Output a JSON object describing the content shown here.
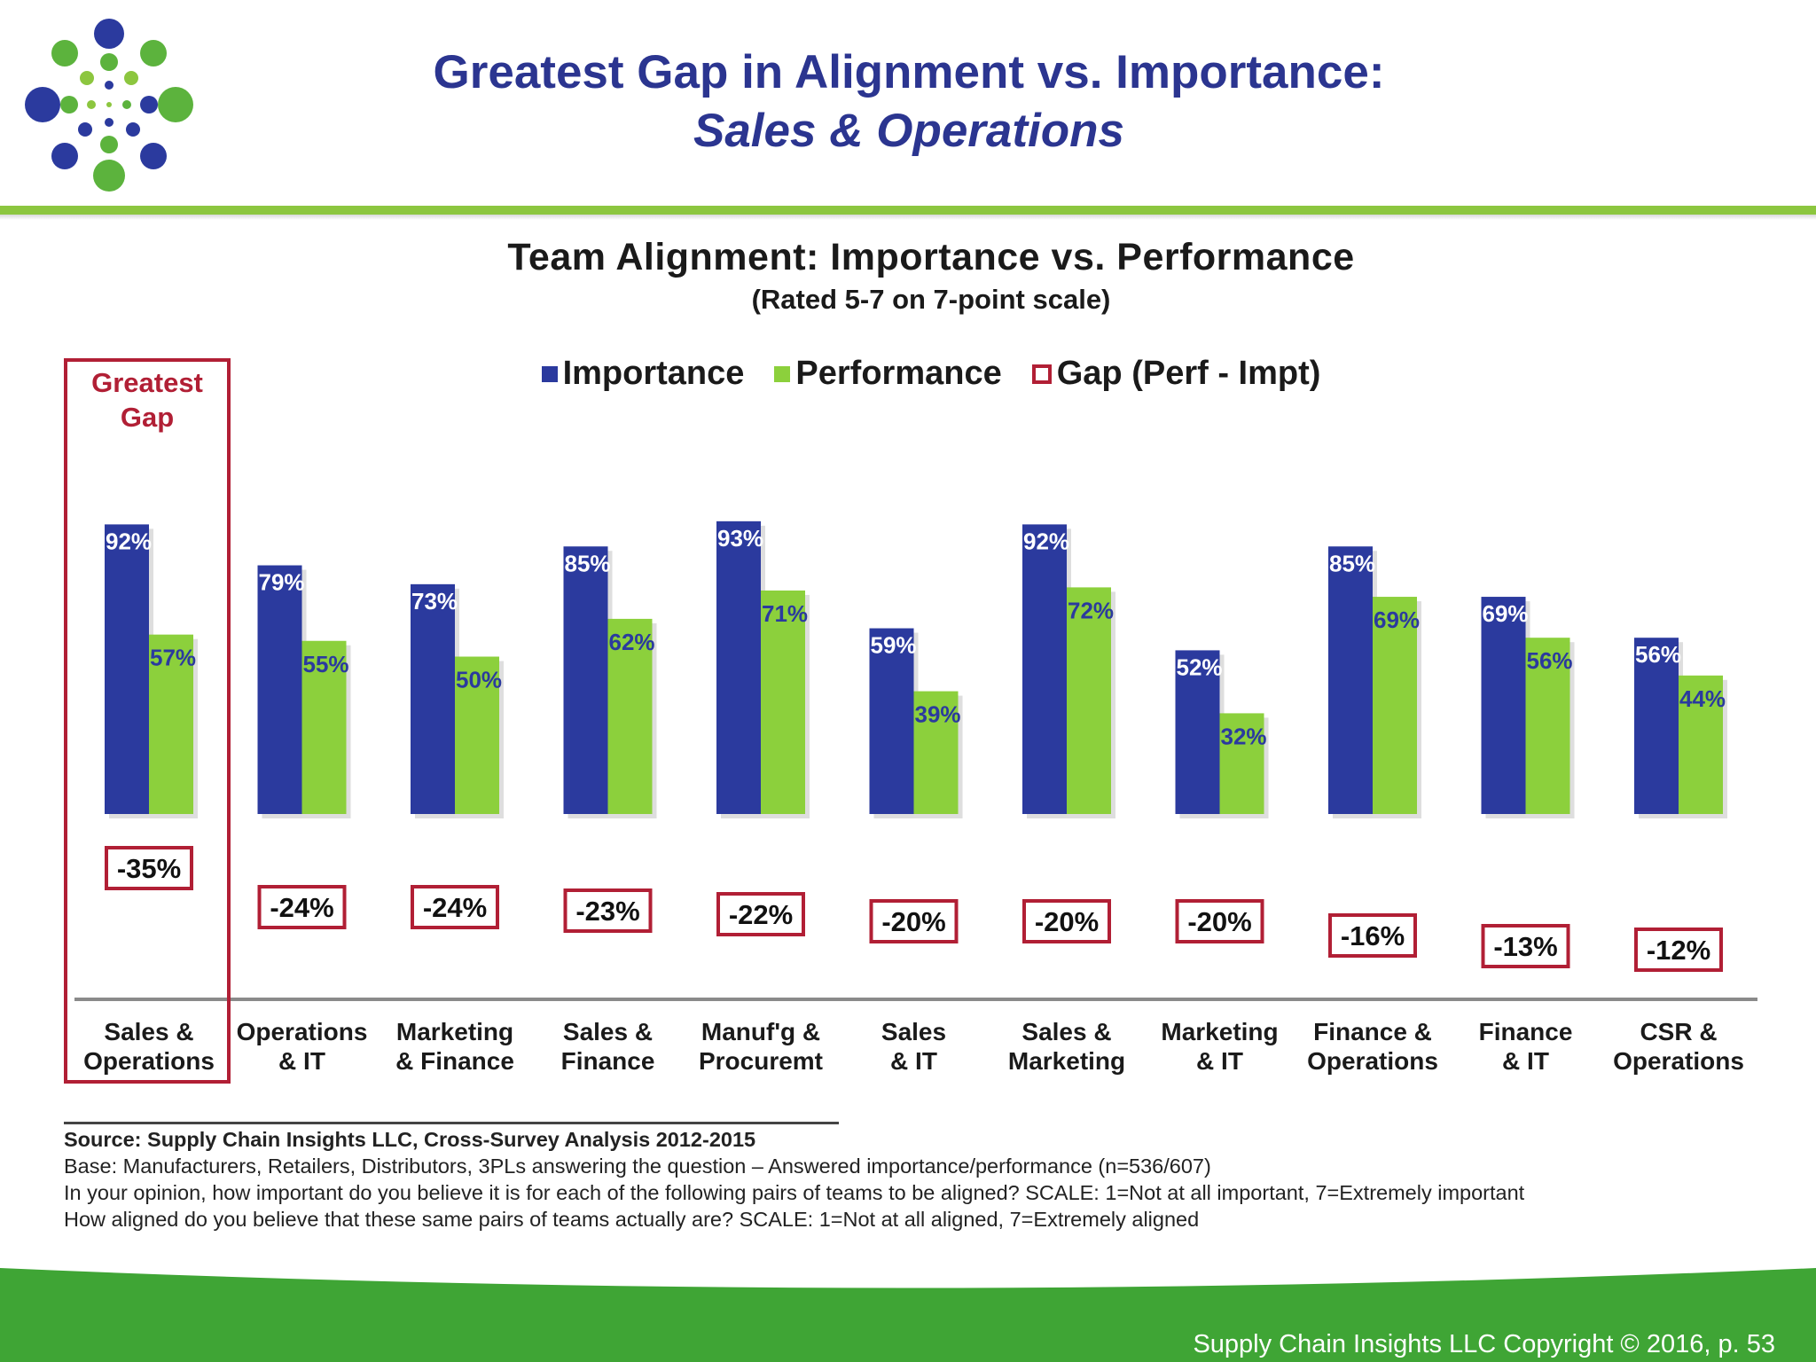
{
  "slide": {
    "title_line1": "Greatest Gap in Alignment vs. Importance:",
    "title_line2": "Sales & Operations",
    "accent_green": "#8cc63f",
    "accent_blue": "#2b3590"
  },
  "highlight": {
    "label_line1": "Greatest",
    "label_line2": "Gap",
    "color": "#b11f35"
  },
  "chart_data": {
    "type": "bar",
    "title": "Team Alignment:  Importance vs. Performance",
    "subtitle": "(Rated 5-7 on 7-point scale)",
    "xlabel": "",
    "ylabel": "",
    "ylim": [
      0,
      100
    ],
    "grid": false,
    "legend_position": "top",
    "categories": [
      [
        "Sales &",
        "Operations"
      ],
      [
        "Operations",
        "& IT"
      ],
      [
        "Marketing",
        "& Finance"
      ],
      [
        "Sales &",
        "Finance"
      ],
      [
        "Manuf'g &",
        "Procuremt"
      ],
      [
        "Sales",
        "& IT"
      ],
      [
        "Sales &",
        "Marketing"
      ],
      [
        "Marketing",
        "& IT"
      ],
      [
        "Finance &",
        "Operations"
      ],
      [
        "Finance",
        "& IT"
      ],
      [
        "CSR &",
        "Operations"
      ]
    ],
    "series": [
      {
        "name": "Importance",
        "color": "#2b3a9e",
        "values": [
          92,
          79,
          73,
          85,
          93,
          59,
          92,
          52,
          85,
          69,
          56
        ]
      },
      {
        "name": "Performance",
        "color": "#8cd03c",
        "values": [
          57,
          55,
          50,
          62,
          71,
          39,
          72,
          32,
          69,
          56,
          44
        ]
      },
      {
        "name": "Gap (Perf - Impt)",
        "color": "#b11f35",
        "values": [
          -35,
          -24,
          -24,
          -23,
          -22,
          -20,
          -20,
          -20,
          -16,
          -13,
          -12
        ]
      }
    ],
    "value_labels": {
      "importance": [
        "92%",
        "79%",
        "73%",
        "85%",
        "93%",
        "59%",
        "92%",
        "52%",
        "85%",
        "69%",
        "56%"
      ],
      "performance": [
        "57%",
        "55%",
        "50%",
        "62%",
        "71%",
        "39%",
        "72%",
        "32%",
        "69%",
        "56%",
        "44%"
      ],
      "gap": [
        "-35%",
        "-24%",
        "-24%",
        "-23%",
        "-22%",
        "-20%",
        "-20%",
        "-20%",
        "-16%",
        "-13%",
        "-12%"
      ]
    }
  },
  "source": {
    "line1": "Source:  Supply Chain Insights LLC, Cross-Survey Analysis 2012-2015",
    "line2": "Base:  Manufacturers,  Retailers, Distributors, 3PLs answering the question – Answered importance/performance (n=536/607)",
    "line3": "In your opinion, how important do you believe it is for each of the following pairs of teams to be aligned?  SCALE: 1=Not at all important,  7=Extremely important",
    "line4": "How aligned do you believe that these same pairs of teams actually are?  SCALE: 1=Not at all aligned, 7=Extremely aligned"
  },
  "footer": {
    "copyright": "Supply Chain Insights LLC Copyright © 2016, p. 53"
  }
}
